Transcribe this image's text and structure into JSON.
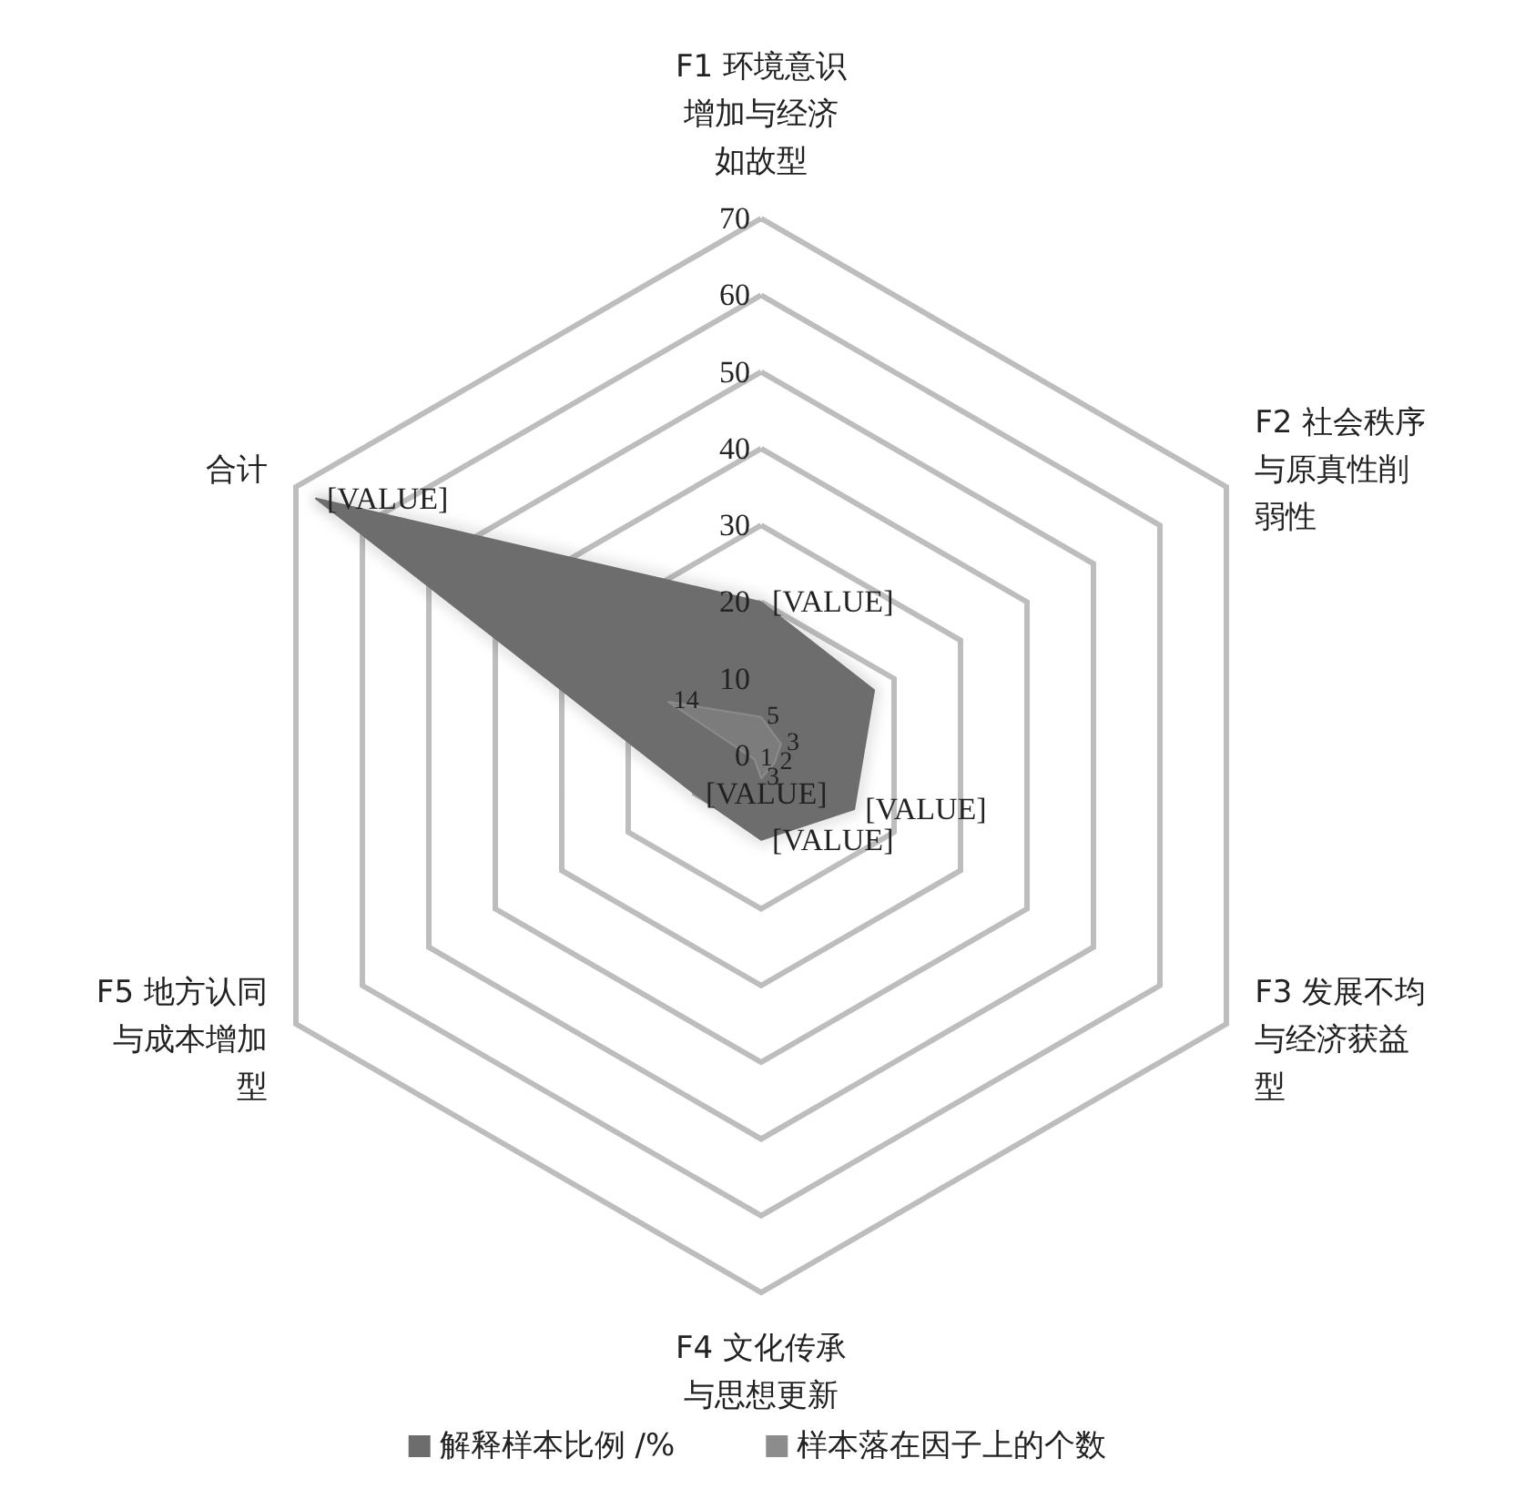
{
  "chart_data": {
    "type": "radar",
    "categories": [
      "F1 环境意识增加与经济如故型",
      "F2 社会秩序与原真性削弱性",
      "F3 发展不均与经济获益型",
      "F4 文化传承与思想更新",
      "F5 地方认同与成本增加型",
      "合计"
    ],
    "series": [
      {
        "name": "解释样本比例 /%",
        "color": "#6d6d6d",
        "values": [
          20,
          17,
          14,
          11,
          10,
          67
        ],
        "value_labels": [
          "[VALUE]",
          null,
          "[VALUE]",
          "[VALUE]",
          "[VALUE]",
          "[VALUE]"
        ]
      },
      {
        "name": "样本落在因子上的个数",
        "color": "#8c8c8c",
        "values": [
          5,
          3,
          2,
          3,
          1,
          14
        ],
        "data_labels": true
      }
    ],
    "ylim": [
      0,
      70
    ],
    "yticks": [
      0,
      10,
      20,
      30,
      40,
      50,
      60,
      70
    ],
    "grid": true,
    "legend": "bottom",
    "marker": "none"
  }
}
